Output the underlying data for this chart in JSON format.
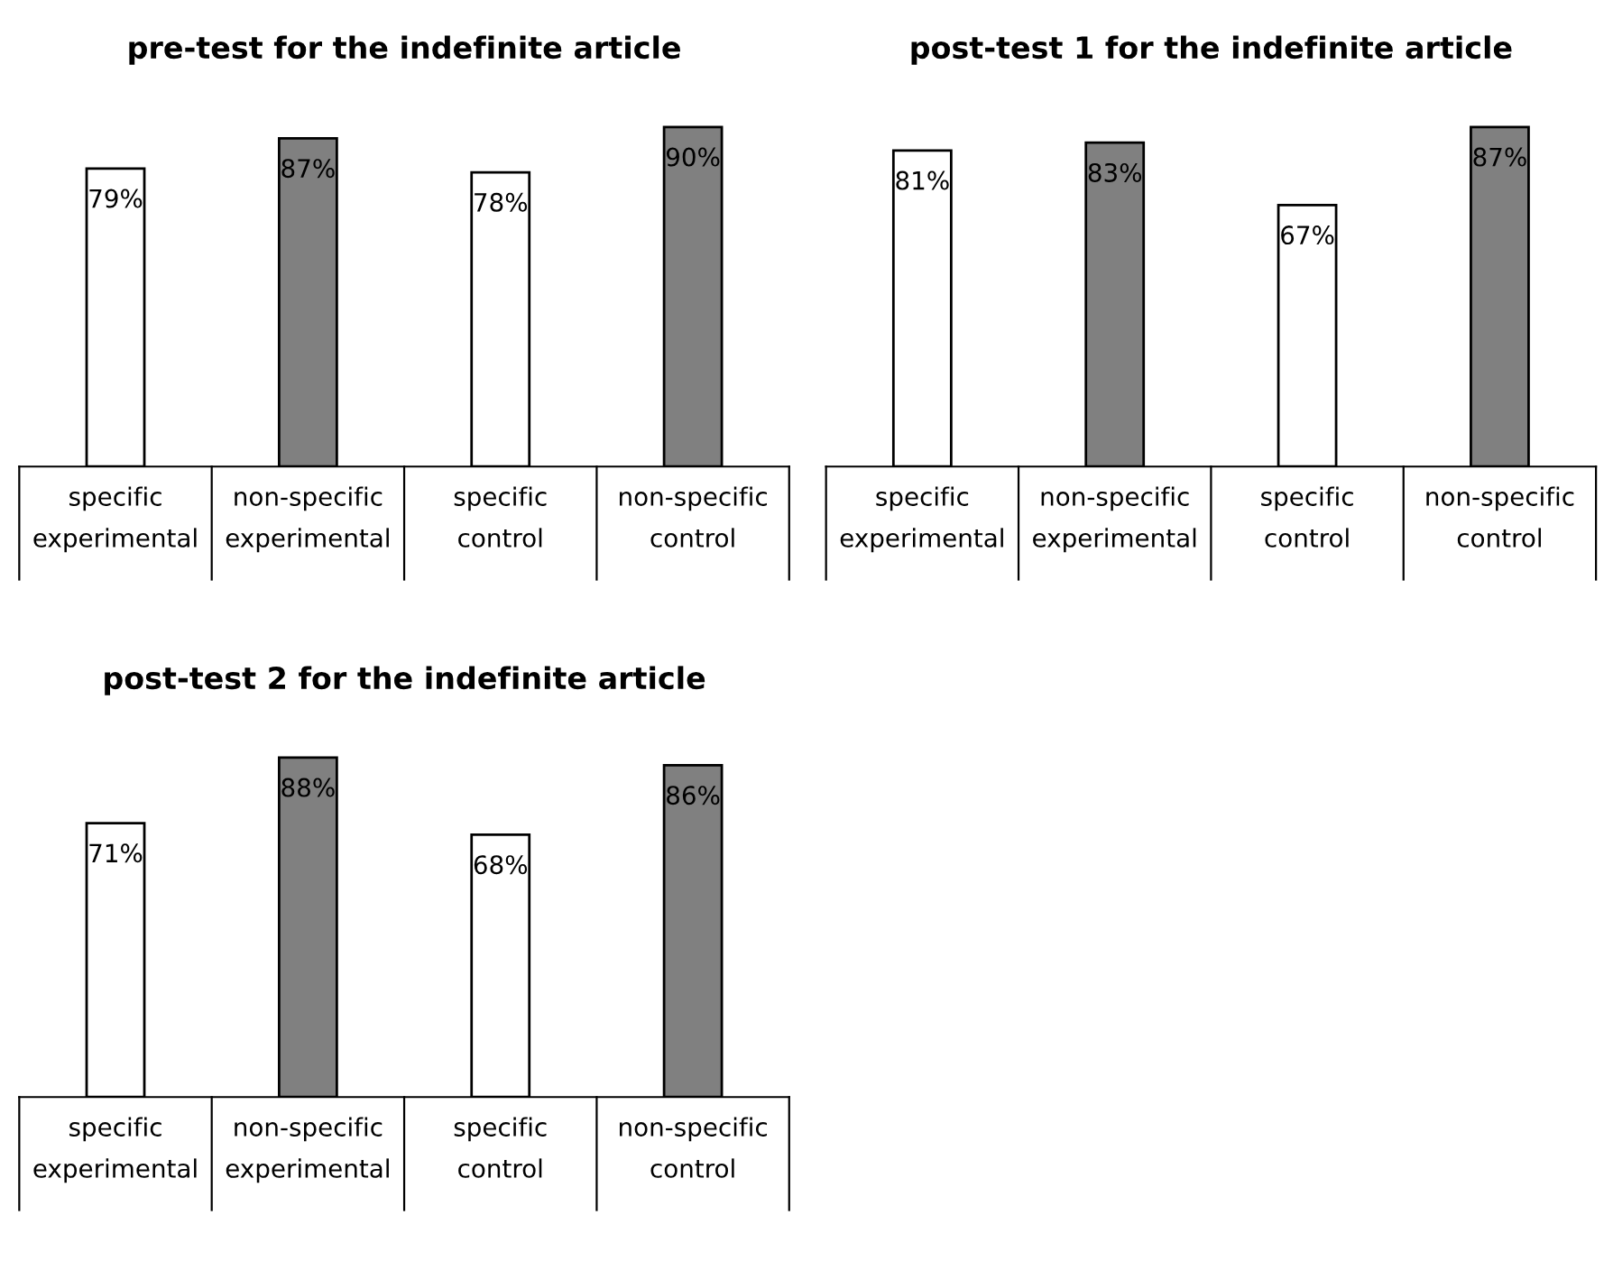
{
  "chart_data": [
    {
      "type": "bar",
      "title": "pre-test for the indefinite article",
      "categories": [
        "specific\nexperimental",
        "non-specific\nexperimental",
        "specific\ncontrol",
        "non-specific\ncontrol"
      ],
      "values": [
        79,
        87,
        78,
        90
      ],
      "colors": [
        "#ffffff",
        "#808080",
        "#ffffff",
        "#808080"
      ],
      "value_labels": [
        "79%",
        "87%",
        "78%",
        "90%"
      ]
    },
    {
      "type": "bar",
      "title": "post-test 1 for the indefinite article",
      "categories": [
        "specific\nexperimental",
        "non-specific\nexperimental",
        "specific\ncontrol",
        "non-specific\ncontrol"
      ],
      "values": [
        81,
        83,
        67,
        87
      ],
      "colors": [
        "#ffffff",
        "#808080",
        "#ffffff",
        "#808080"
      ],
      "value_labels": [
        "81%",
        "83%",
        "67%",
        "87%"
      ]
    },
    {
      "type": "bar",
      "title": "post-test 2 for the indefinite article",
      "categories": [
        "specific\nexperimental",
        "non-specific\nexperimental",
        "specific\ncontrol",
        "non-specific\ncontrol"
      ],
      "values": [
        71,
        88,
        68,
        86
      ],
      "colors": [
        "#ffffff",
        "#808080",
        "#ffffff",
        "#808080"
      ],
      "value_labels": [
        "71%",
        "88%",
        "68%",
        "86%"
      ]
    }
  ]
}
